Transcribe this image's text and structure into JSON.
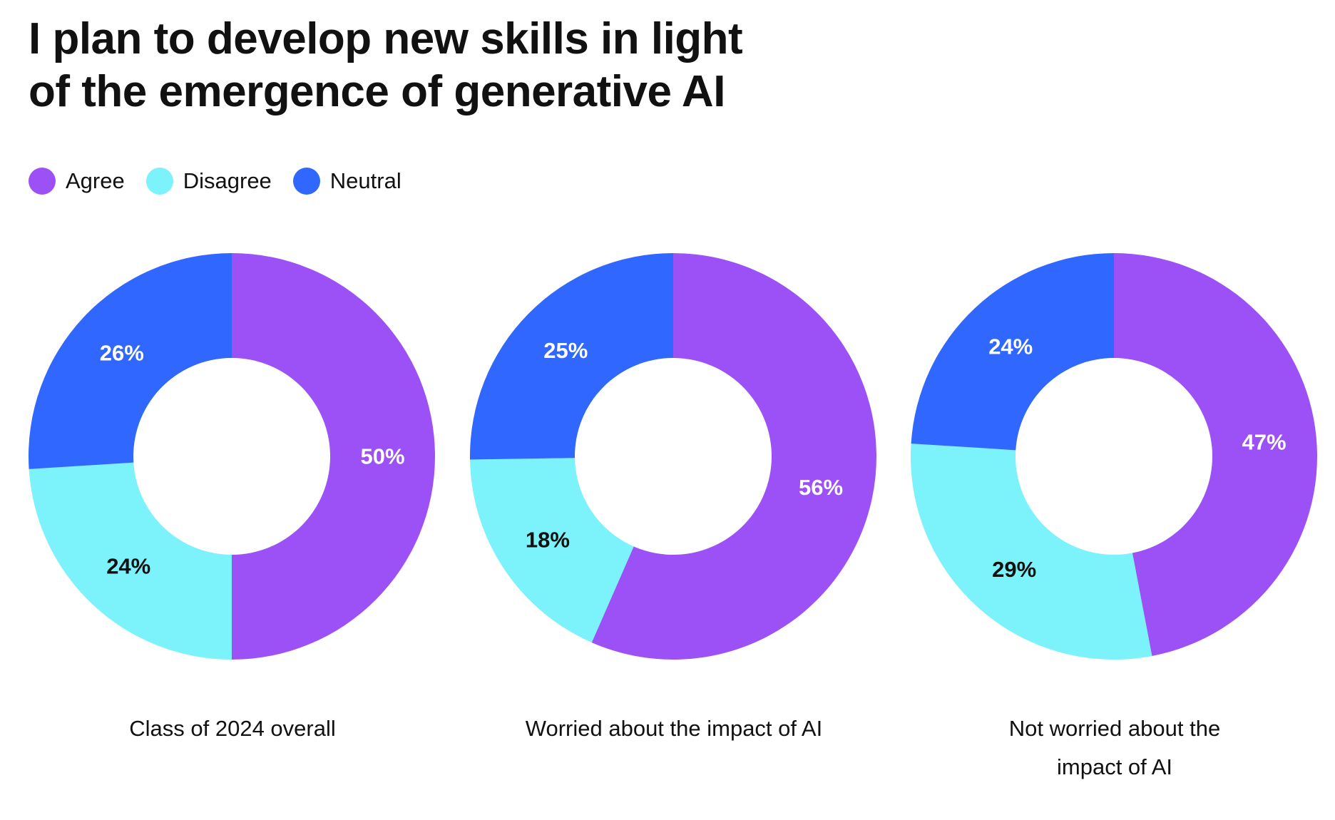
{
  "title_lines": [
    "I plan to develop new skills in light",
    "of the emergence of generative AI"
  ],
  "legend": [
    {
      "label": "Agree",
      "color": "#9b51f5"
    },
    {
      "label": "Disagree",
      "color": "#7cf2fb"
    },
    {
      "label": "Neutral",
      "color": "#2f67ff"
    }
  ],
  "chart_data": [
    {
      "type": "pie",
      "title": "Class of 2024 overall",
      "categories": [
        "Agree",
        "Disagree",
        "Neutral"
      ],
      "values": [
        50,
        24,
        26
      ],
      "labels": [
        "50%",
        "24%",
        "26%"
      ]
    },
    {
      "type": "pie",
      "title": "Worried about the impact of AI",
      "categories": [
        "Agree",
        "Disagree",
        "Neutral"
      ],
      "values": [
        56,
        18,
        25
      ],
      "labels": [
        "56%",
        "18%",
        "25%"
      ]
    },
    {
      "type": "pie",
      "title": "Not worried about the impact of AI",
      "title_lines": [
        "Not worried about the",
        "impact of AI"
      ],
      "categories": [
        "Agree",
        "Disagree",
        "Neutral"
      ],
      "values": [
        47,
        29,
        24
      ],
      "labels": [
        "47%",
        "29%",
        "24%"
      ]
    }
  ]
}
